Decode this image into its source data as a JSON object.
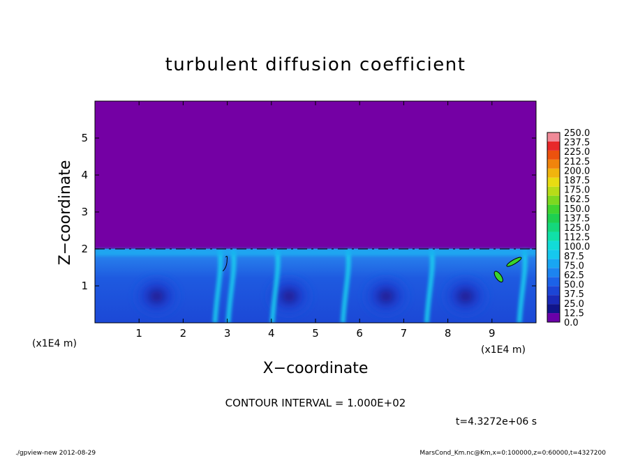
{
  "chart_data": {
    "type": "heatmap",
    "title": "turbulent diffusion coefficient",
    "xlabel": "X−coordinate",
    "ylabel": "Z−coordinate",
    "x_unit_label": "(x1E4 m)",
    "z_unit_label": "(x1E4 m)",
    "xlim": [
      0,
      10
    ],
    "ylim": [
      0,
      6
    ],
    "x_ticks": [
      1,
      2,
      3,
      4,
      5,
      6,
      7,
      8,
      9
    ],
    "y_ticks": [
      1,
      2,
      3,
      4,
      5
    ],
    "colorbar_levels": [
      "0.0",
      "12.5",
      "25.0",
      "37.5",
      "50.0",
      "62.5",
      "75.0",
      "87.5",
      "100.0",
      "112.5",
      "125.0",
      "137.5",
      "150.0",
      "162.5",
      "175.0",
      "187.5",
      "200.0",
      "212.5",
      "225.0",
      "237.5",
      "250.0"
    ],
    "colorbar_colors": [
      "#6a00a8",
      "#10148a",
      "#1a2ab8",
      "#1c45d6",
      "#1c62e8",
      "#1c84f0",
      "#18a6f2",
      "#16c8ee",
      "#12dcd8",
      "#10e0a8",
      "#14d87c",
      "#1ed050",
      "#40d430",
      "#7ed820",
      "#b8dc18",
      "#e8dc12",
      "#f0b40e",
      "#f0840c",
      "#ec520e",
      "#e8282a",
      "#f08a98"
    ],
    "contour_interval": "CONTOUR INTERVAL = 1.000E+02",
    "time": "t=4.3272e+06 s",
    "footer_left": "./gpview-new   2012-08-29",
    "footer_right": "MarsCond_Km.nc@Km,x=0:100000,z=0:60000,t=4327200",
    "upper_value_color": "#7400a4",
    "boundary_layer_top_z": 2.0,
    "plumes_x": [
      2.8,
      3.1,
      4.1,
      5.7,
      7.6,
      9.7
    ],
    "eddy_centers_x": [
      1.4,
      4.4,
      6.6,
      8.4
    ]
  }
}
